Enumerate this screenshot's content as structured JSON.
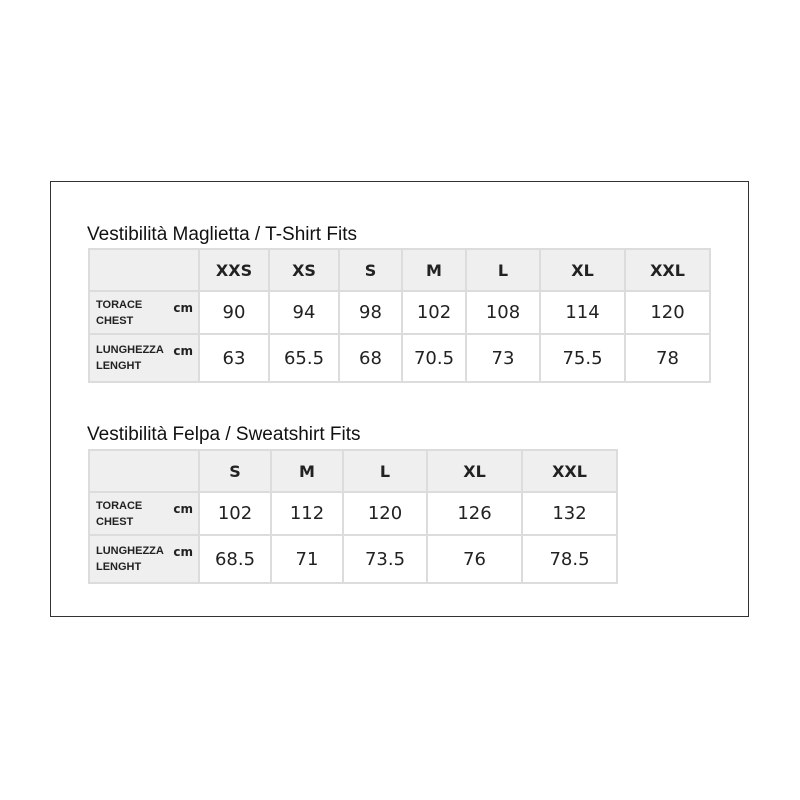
{
  "tshirt": {
    "title": "Vestibilità Maglietta / T-Shirt Fits",
    "sizes": [
      "XXS",
      "XS",
      "S",
      "M",
      "L",
      "XL",
      "XXL"
    ],
    "rows": [
      {
        "label_it": "TORACE",
        "label_en": "CHEST",
        "unit": "cm",
        "values": [
          "90",
          "94",
          "98",
          "102",
          "108",
          "114",
          "120"
        ]
      },
      {
        "label_it": "LUNGHEZZA",
        "label_en": "LENGHT",
        "unit": "cm",
        "values": [
          "63",
          "65.5",
          "68",
          "70.5",
          "73",
          "75.5",
          "78"
        ]
      }
    ]
  },
  "sweatshirt": {
    "title": "Vestibilità Felpa / Sweatshirt Fits",
    "sizes": [
      "S",
      "M",
      "L",
      "XL",
      "XXL"
    ],
    "rows": [
      {
        "label_it": "TORACE",
        "label_en": "CHEST",
        "unit": "cm",
        "values": [
          "102",
          "112",
          "120",
          "126",
          "132"
        ]
      },
      {
        "label_it": "LUNGHEZZA",
        "label_en": "LENGHT",
        "unit": "cm",
        "values": [
          "68.5",
          "71",
          "73.5",
          "76",
          "78.5"
        ]
      }
    ]
  }
}
